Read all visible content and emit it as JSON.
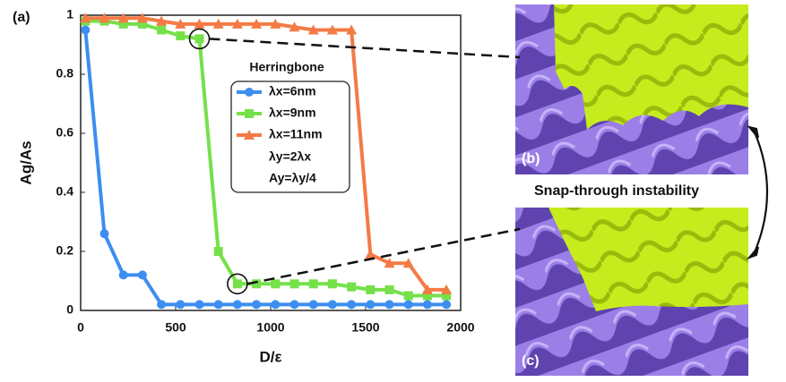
{
  "chart_data": {
    "type": "line",
    "panel_label": "(a)",
    "xlabel": "D/ε",
    "ylabel": "Ag/As",
    "xlim": [
      0,
      2000
    ],
    "xticks": [
      0,
      500,
      1000,
      1500,
      2000
    ],
    "ylim": [
      0,
      1
    ],
    "yticks": [
      0,
      0.2,
      0.4,
      0.6,
      0.8,
      1
    ],
    "legend_title": "Herringbone",
    "annotations": [
      "λy=2λx",
      "Ay=λy/4"
    ],
    "series": [
      {
        "name": "λx=6nm",
        "color": "#3d8ef0",
        "marker": "circle",
        "x": [
          25,
          125,
          225,
          325,
          425,
          525,
          625,
          725,
          825,
          925,
          1025,
          1125,
          1225,
          1325,
          1425,
          1525,
          1625,
          1725,
          1825,
          1925
        ],
        "values": [
          0.95,
          0.26,
          0.12,
          0.12,
          0.02,
          0.02,
          0.02,
          0.02,
          0.02,
          0.02,
          0.02,
          0.02,
          0.02,
          0.02,
          0.02,
          0.02,
          0.02,
          0.02,
          0.02,
          0.02
        ]
      },
      {
        "name": "λx=9nm",
        "color": "#76e04a",
        "marker": "square",
        "x": [
          25,
          125,
          225,
          325,
          425,
          525,
          625,
          725,
          825,
          925,
          1025,
          1125,
          1225,
          1325,
          1425,
          1525,
          1625,
          1725,
          1825,
          1925
        ],
        "values": [
          0.98,
          0.98,
          0.97,
          0.97,
          0.95,
          0.93,
          0.92,
          0.2,
          0.09,
          0.09,
          0.09,
          0.09,
          0.09,
          0.09,
          0.08,
          0.07,
          0.07,
          0.05,
          0.05,
          0.05
        ]
      },
      {
        "name": "λx=11nm",
        "color": "#f47a45",
        "marker": "triangle",
        "x": [
          25,
          125,
          225,
          325,
          425,
          525,
          625,
          725,
          825,
          925,
          1025,
          1125,
          1225,
          1325,
          1425,
          1525,
          1625,
          1725,
          1825,
          1925
        ],
        "values": [
          0.99,
          0.99,
          0.99,
          0.99,
          0.98,
          0.97,
          0.97,
          0.97,
          0.97,
          0.97,
          0.97,
          0.96,
          0.95,
          0.95,
          0.95,
          0.19,
          0.16,
          0.16,
          0.07,
          0.07
        ]
      }
    ],
    "panels": [
      {
        "label": "(b)"
      },
      {
        "label": "(c)"
      }
    ],
    "caption": "Snap-through instability"
  }
}
